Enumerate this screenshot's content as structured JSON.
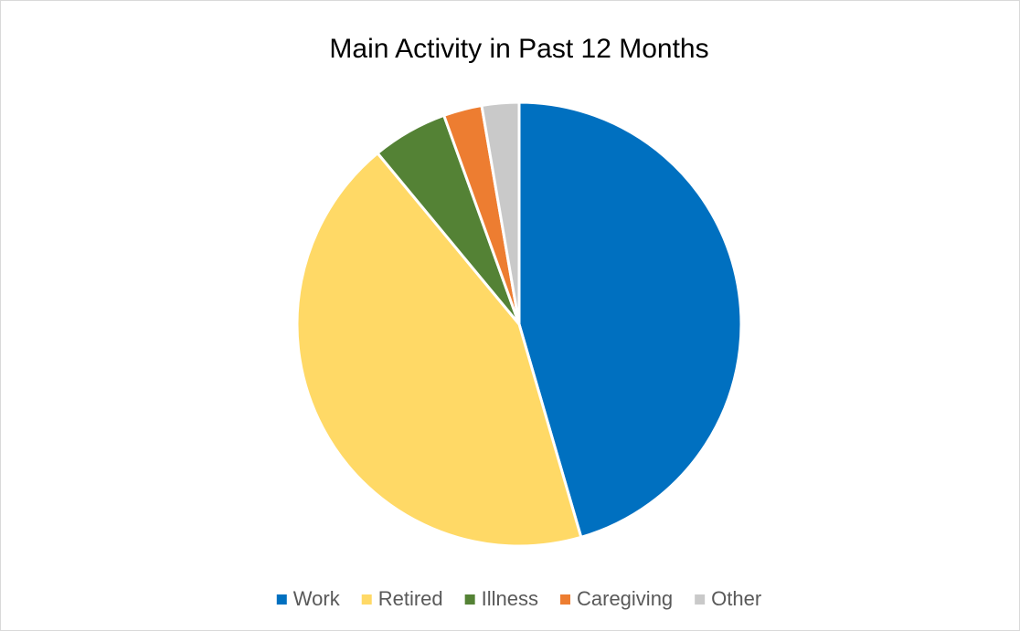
{
  "chart_data": {
    "type": "pie",
    "title": "Main Activity in Past 12 Months",
    "categories": [
      "Work",
      "Retired",
      "Illness",
      "Caregiving",
      "Other"
    ],
    "values": [
      45.5,
      43.5,
      5.5,
      2.8,
      2.7
    ],
    "colors": [
      "#0070c0",
      "#ffd966",
      "#548235",
      "#ed7d31",
      "#c9c9c9"
    ],
    "legend": "bottom"
  }
}
